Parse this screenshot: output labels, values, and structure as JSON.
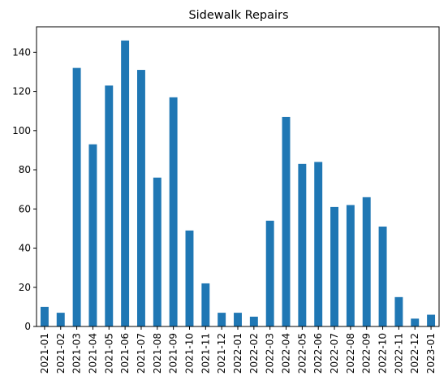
{
  "chart_data": {
    "type": "bar",
    "title": "Sidewalk Repairs",
    "xlabel": "",
    "ylabel": "",
    "categories": [
      "2021-01",
      "2021-02",
      "2021-03",
      "2021-04",
      "2021-05",
      "2021-06",
      "2021-07",
      "2021-08",
      "2021-09",
      "2021-10",
      "2021-11",
      "2021-12",
      "2022-01",
      "2022-02",
      "2022-03",
      "2022-04",
      "2022-05",
      "2022-06",
      "2022-07",
      "2022-08",
      "2022-09",
      "2022-10",
      "2022-11",
      "2022-12",
      "2023-01"
    ],
    "values": [
      10,
      7,
      132,
      93,
      123,
      146,
      131,
      76,
      117,
      49,
      22,
      7,
      7,
      5,
      54,
      107,
      83,
      84,
      61,
      62,
      66,
      51,
      15,
      4,
      6
    ],
    "ylim": [
      0,
      153
    ],
    "yticks": [
      0,
      20,
      40,
      60,
      80,
      100,
      120,
      140
    ],
    "grid": false,
    "legend": "none",
    "bar_color": "#1f77b4"
  }
}
